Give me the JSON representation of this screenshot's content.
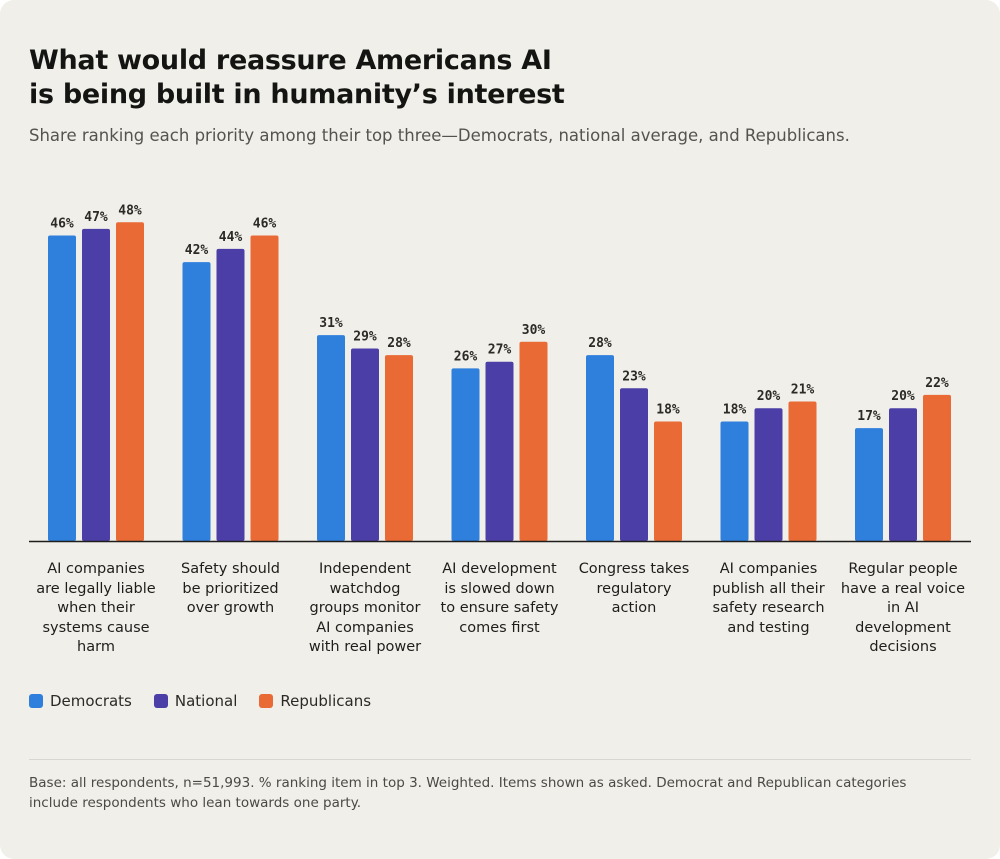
{
  "title_line1": "What would reassure Americans AI",
  "title_line2": "is being built in humanity’s interest",
  "subtitle": "Share ranking each priority among their top three—Democrats, national average, and Republicans.",
  "chart_data": {
    "type": "bar",
    "categories": [
      "AI companies are legally liable when their systems cause harm",
      "Safety should be prioritized over growth",
      "Independent watchdog groups monitor AI companies with real power",
      "AI development is slowed down to ensure safety comes first",
      "Congress takes regulatory action",
      "AI companies publish all their safety research and testing",
      "Regular people have a real voice in AI development decisions"
    ],
    "category_lines": [
      [
        "AI companies",
        "are legally liable",
        "when their",
        "systems cause",
        "harm"
      ],
      [
        "Safety should",
        "be prioritized",
        "over growth"
      ],
      [
        "Independent",
        "watchdog",
        "groups monitor",
        "AI companies",
        "with real power"
      ],
      [
        "AI development",
        "is slowed down",
        "to ensure safety",
        "comes first"
      ],
      [
        "Congress takes",
        "regulatory",
        "action"
      ],
      [
        "AI companies",
        "publish all their",
        "safety research",
        "and testing"
      ],
      [
        "Regular people",
        "have a real voice",
        "in AI",
        "development",
        "decisions"
      ]
    ],
    "series": [
      {
        "name": "Democrats",
        "color": "#2f7fdc",
        "values": [
          46,
          42,
          31,
          26,
          28,
          18,
          17
        ]
      },
      {
        "name": "National",
        "color": "#4b3ea6",
        "values": [
          47,
          44,
          29,
          27,
          23,
          20,
          20
        ]
      },
      {
        "name": "Republicans",
        "color": "#ea6a35",
        "values": [
          48,
          46,
          28,
          30,
          18,
          21,
          22
        ]
      }
    ],
    "value_suffix": "%",
    "ylim": [
      0,
      50
    ],
    "legend_position": "bottom-left",
    "grid": false
  },
  "legend": [
    "Democrats",
    "National",
    "Republicans"
  ],
  "footnote": "Base: all respondents, n=51,993. % ranking item in top 3. Weighted. Items shown as asked. Democrat and Republican categories include respondents who lean towards one party."
}
